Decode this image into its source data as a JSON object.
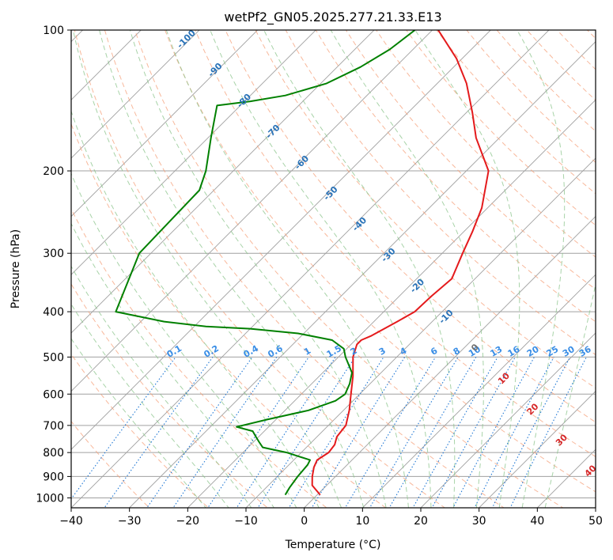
{
  "chart_data": {
    "type": "line",
    "title": "wetPf2_GN05.2025.277.21.33.E13",
    "xlabel": "Temperature (°C)",
    "ylabel": "Pressure (hPa)",
    "xlim": [
      -40,
      50
    ],
    "ylim": [
      1050,
      100
    ],
    "y_scale": "log",
    "skew": "skew-T log-P",
    "grid": true,
    "x_ticks": [
      -40,
      -30,
      -20,
      -10,
      0,
      10,
      20,
      30,
      40,
      50
    ],
    "y_ticks": [
      100,
      200,
      300,
      400,
      500,
      600,
      700,
      800,
      900,
      1000
    ],
    "series": [
      {
        "color": "#e41a1c",
        "points": [
          [
            985,
            0.5
          ],
          [
            940,
            -2.5
          ],
          [
            900,
            -4.0
          ],
          [
            860,
            -5.3
          ],
          [
            830,
            -6.0
          ],
          [
            800,
            -5.3
          ],
          [
            770,
            -5.6
          ],
          [
            740,
            -6.6
          ],
          [
            700,
            -7.0
          ],
          [
            650,
            -9.0
          ],
          [
            600,
            -11.5
          ],
          [
            550,
            -14.2
          ],
          [
            500,
            -17.5
          ],
          [
            470,
            -19.0
          ],
          [
            460,
            -19.0
          ],
          [
            450,
            -18.0
          ],
          [
            420,
            -16.0
          ],
          [
            400,
            -14.7
          ],
          [
            370,
            -14.5
          ],
          [
            340,
            -14.0
          ],
          [
            300,
            -16.5
          ],
          [
            270,
            -18.5
          ],
          [
            240,
            -21.0
          ],
          [
            200,
            -26.2
          ],
          [
            170,
            -34.0
          ],
          [
            150,
            -39.0
          ],
          [
            130,
            -45.0
          ],
          [
            115,
            -51.0
          ],
          [
            100,
            -59.0
          ]
        ]
      },
      {
        "color": "#008000",
        "points": [
          [
            985,
            -5.5
          ],
          [
            950,
            -6.0
          ],
          [
            900,
            -6.5
          ],
          [
            850,
            -6.8
          ],
          [
            830,
            -7.2
          ],
          [
            800,
            -12.5
          ],
          [
            780,
            -17.5
          ],
          [
            760,
            -19.0
          ],
          [
            740,
            -20.5
          ],
          [
            720,
            -22.0
          ],
          [
            705,
            -25.5
          ],
          [
            680,
            -21.5
          ],
          [
            650,
            -16.0
          ],
          [
            620,
            -13.0
          ],
          [
            600,
            -12.5
          ],
          [
            570,
            -13.5
          ],
          [
            540,
            -15.0
          ],
          [
            500,
            -18.8
          ],
          [
            480,
            -20.5
          ],
          [
            460,
            -24.0
          ],
          [
            445,
            -31.0
          ],
          [
            435,
            -40.0
          ],
          [
            430,
            -48.0
          ],
          [
            420,
            -56.0
          ],
          [
            400,
            -66.0
          ],
          [
            300,
            -72.0
          ],
          [
            220,
            -72.5
          ],
          [
            200,
            -74.7
          ],
          [
            170,
            -79.5
          ],
          [
            145,
            -84.0
          ],
          [
            142,
            -79.0
          ],
          [
            138,
            -74.0
          ],
          [
            130,
            -69.0
          ],
          [
            120,
            -66.0
          ],
          [
            110,
            -64.0
          ],
          [
            100,
            -63.0
          ]
        ]
      }
    ],
    "dry_adiabats_label": [],
    "moist_adiabat_labels": [
      "-100",
      "-90",
      "-80",
      "-70",
      "-60",
      "-50",
      "-40",
      "-30",
      "-20",
      "-10",
      "0",
      "10",
      "20",
      "30",
      "40"
    ],
    "mixing_ratio_labels": [
      "0.1",
      "0.2",
      "0.4",
      "0.6",
      "1",
      "1.5",
      "2",
      "3",
      "4",
      "6",
      "8",
      "10",
      "13",
      "16",
      "20",
      "25",
      "30",
      "36"
    ],
    "colors": {
      "temperature": "#e41a1c",
      "dewpoint": "#008000",
      "isotherm_grid": "#a0a0a0",
      "dry_adiabat": "#f5a07a",
      "moist_adiabat": "#8bc48b",
      "mixing_ratio": "#1f77d4",
      "wetbulb_label": "#2a73b8",
      "positive_label": "#d62728",
      "zero_label": "#707070"
    }
  }
}
